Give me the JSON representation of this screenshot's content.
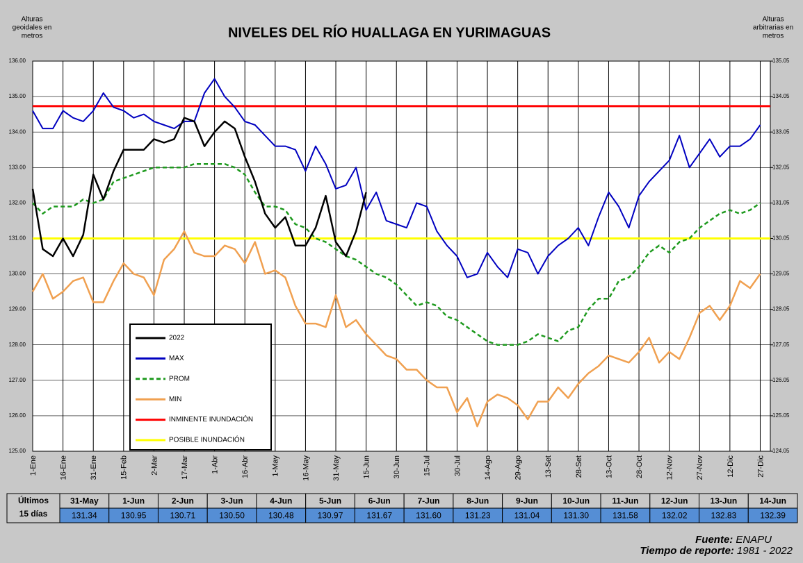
{
  "chart_data": {
    "type": "line",
    "title": "NIVELES DEL RÍO HUALLAGA EN YURIMAGUAS",
    "y_label": [
      "Alturas",
      "geoidales en",
      "metros"
    ],
    "y2_label": [
      "Alturas",
      "arbitrarias en",
      "metros"
    ],
    "x": [
      1,
      6,
      11,
      16,
      21,
      26,
      31,
      36,
      41,
      46,
      51,
      56,
      61,
      66,
      71,
      76,
      81,
      86,
      91,
      96,
      101,
      106,
      111,
      116,
      121,
      126,
      131,
      136,
      141,
      146,
      151,
      156,
      161,
      166,
      171,
      176,
      181,
      186,
      191,
      196,
      201,
      206,
      211,
      216,
      221,
      226,
      231,
      236,
      241,
      246,
      251,
      256,
      261,
      266,
      271,
      276,
      281,
      286,
      291,
      296,
      301,
      306,
      311,
      316,
      321,
      326,
      331,
      336,
      341,
      346,
      351,
      356,
      361
    ],
    "xlim": [
      1,
      366
    ],
    "xticks": [
      {
        "value": 1,
        "label": "1-Ene"
      },
      {
        "value": 16,
        "label": "16-Ene"
      },
      {
        "value": 31,
        "label": "31-Ene"
      },
      {
        "value": 46,
        "label": "15-Feb"
      },
      {
        "value": 61,
        "label": "2-Mar"
      },
      {
        "value": 76,
        "label": "17-Mar"
      },
      {
        "value": 91,
        "label": "1-Abr"
      },
      {
        "value": 106,
        "label": "16-Abr"
      },
      {
        "value": 121,
        "label": "1-May"
      },
      {
        "value": 136,
        "label": "16-May"
      },
      {
        "value": 151,
        "label": "31-May"
      },
      {
        "value": 166,
        "label": "15-Jun"
      },
      {
        "value": 181,
        "label": "30-Jun"
      },
      {
        "value": 196,
        "label": "15-Jul"
      },
      {
        "value": 211,
        "label": "30-Jul"
      },
      {
        "value": 226,
        "label": "14-Ago"
      },
      {
        "value": 241,
        "label": "29-Ago"
      },
      {
        "value": 256,
        "label": "13-Set"
      },
      {
        "value": 271,
        "label": "28-Set"
      },
      {
        "value": 286,
        "label": "13-Oct"
      },
      {
        "value": 301,
        "label": "28-Oct"
      },
      {
        "value": 316,
        "label": "12-Nov"
      },
      {
        "value": 331,
        "label": "27-Nov"
      },
      {
        "value": 346,
        "label": "12-Dic"
      },
      {
        "value": 361,
        "label": "27-Dic"
      }
    ],
    "ylim": [
      125,
      136
    ],
    "yticks": [
      {
        "value": 125,
        "label": "125.00"
      },
      {
        "value": 126,
        "label": "126.00"
      },
      {
        "value": 127,
        "label": "127.00"
      },
      {
        "value": 128,
        "label": "128.00"
      },
      {
        "value": 129,
        "label": "129.00"
      },
      {
        "value": 130,
        "label": "130.00"
      },
      {
        "value": 131,
        "label": "131.00"
      },
      {
        "value": 132,
        "label": "132.00"
      },
      {
        "value": 133,
        "label": "133.00"
      },
      {
        "value": 134,
        "label": "134.00"
      },
      {
        "value": 135,
        "label": "135.00"
      },
      {
        "value": 136,
        "label": "136.00"
      }
    ],
    "y2lim": [
      124.05,
      135.05
    ],
    "y2ticks": [
      124.05,
      125.05,
      126.05,
      127.05,
      128.05,
      129.05,
      130.05,
      131.05,
      132.05,
      133.05,
      134.05,
      135.05
    ],
    "grid": true,
    "series": [
      {
        "name": "2022",
        "color": "#000000",
        "dashed": false,
        "values": [
          132.4,
          130.7,
          130.5,
          131.0,
          130.5,
          131.1,
          132.8,
          132.1,
          132.9,
          133.5,
          133.5,
          133.5,
          133.8,
          133.7,
          133.8,
          134.4,
          134.3,
          133.6,
          134.0,
          134.3,
          134.1,
          133.3,
          132.6,
          131.7,
          131.3,
          131.6,
          130.8,
          130.8,
          131.3,
          132.2,
          130.9,
          130.5,
          131.2,
          132.3,
          null,
          null,
          null,
          null,
          null,
          null,
          null,
          null,
          null,
          null,
          null,
          null,
          null,
          null,
          null,
          null,
          null,
          null,
          null,
          null,
          null,
          null,
          null,
          null,
          null,
          null,
          null,
          null,
          null,
          null,
          null,
          null,
          null,
          null,
          null,
          null,
          null,
          null,
          null
        ]
      },
      {
        "name": "MAX",
        "color": "#0000c0",
        "dashed": false,
        "values": [
          134.6,
          134.1,
          134.1,
          134.6,
          134.4,
          134.3,
          134.6,
          135.1,
          134.7,
          134.6,
          134.4,
          134.5,
          134.3,
          134.2,
          134.1,
          134.3,
          134.3,
          135.1,
          135.5,
          135.0,
          134.7,
          134.3,
          134.2,
          133.9,
          133.6,
          133.6,
          133.5,
          132.9,
          133.6,
          133.1,
          132.4,
          132.5,
          133.0,
          131.8,
          132.3,
          131.5,
          131.4,
          131.3,
          132.0,
          131.9,
          131.2,
          130.8,
          130.5,
          129.9,
          130.0,
          130.6,
          130.2,
          129.9,
          130.7,
          130.6,
          130.0,
          130.5,
          130.8,
          131.0,
          131.3,
          130.8,
          131.6,
          132.3,
          131.9,
          131.3,
          132.2,
          132.6,
          132.9,
          133.2,
          133.9,
          133.0,
          133.4,
          133.8,
          133.3,
          133.6,
          133.6,
          133.8,
          134.2
        ]
      },
      {
        "name": "PROM",
        "color": "#1e9a1e",
        "dashed": true,
        "values": [
          132.0,
          131.7,
          131.9,
          131.9,
          131.9,
          132.1,
          132.0,
          132.1,
          132.6,
          132.7,
          132.8,
          132.9,
          133.0,
          133.0,
          133.0,
          133.0,
          133.1,
          133.1,
          133.1,
          133.1,
          133.0,
          132.8,
          132.3,
          131.9,
          131.9,
          131.8,
          131.4,
          131.3,
          131.0,
          130.9,
          130.7,
          130.5,
          130.4,
          130.2,
          130.0,
          129.9,
          129.7,
          129.4,
          129.1,
          129.2,
          129.1,
          128.8,
          128.7,
          128.5,
          128.3,
          128.1,
          128.0,
          128.0,
          128.0,
          128.1,
          128.3,
          128.2,
          128.1,
          128.4,
          128.5,
          129.0,
          129.3,
          129.3,
          129.8,
          129.9,
          130.2,
          130.6,
          130.8,
          130.6,
          130.9,
          131.0,
          131.3,
          131.5,
          131.7,
          131.8,
          131.7,
          131.8,
          132.0
        ]
      },
      {
        "name": "MIN",
        "color": "#f0a050",
        "dashed": false,
        "values": [
          129.5,
          130.0,
          129.3,
          129.5,
          129.8,
          129.9,
          129.2,
          129.2,
          129.8,
          130.3,
          130.0,
          129.9,
          129.4,
          130.4,
          130.7,
          131.2,
          130.6,
          130.5,
          130.5,
          130.8,
          130.7,
          130.3,
          130.9,
          130.0,
          130.1,
          129.9,
          129.1,
          128.6,
          128.6,
          128.5,
          129.4,
          128.5,
          128.7,
          128.3,
          128.0,
          127.7,
          127.6,
          127.3,
          127.3,
          127.0,
          126.8,
          126.8,
          126.1,
          126.5,
          125.7,
          126.4,
          126.6,
          126.5,
          126.3,
          125.9,
          126.4,
          126.4,
          126.8,
          126.5,
          126.9,
          127.2,
          127.4,
          127.7,
          127.6,
          127.5,
          127.8,
          128.2,
          127.5,
          127.8,
          127.6,
          128.2,
          128.9,
          129.1,
          128.7,
          129.1,
          129.8,
          129.6,
          130.0
        ]
      }
    ],
    "reference_lines": [
      {
        "name": "INMINENTE INUNDACIÓN",
        "color": "#ff0000",
        "value": 134.73
      },
      {
        "name": "POSIBLE INUNDACIÓN",
        "color": "#ffff00",
        "value": 131.0
      }
    ]
  },
  "table": {
    "header": [
      "Últimos",
      "15 días"
    ],
    "dates": [
      "31-May",
      "1-Jun",
      "2-Jun",
      "3-Jun",
      "4-Jun",
      "5-Jun",
      "6-Jun",
      "7-Jun",
      "8-Jun",
      "9-Jun",
      "10-Jun",
      "11-Jun",
      "12-Jun",
      "13-Jun",
      "14-Jun"
    ],
    "values": [
      "131.34",
      "130.95",
      "130.71",
      "130.50",
      "130.48",
      "130.97",
      "131.67",
      "131.60",
      "131.23",
      "131.04",
      "131.30",
      "131.58",
      "132.02",
      "132.83",
      "132.39"
    ]
  },
  "footer": {
    "source_label": "Fuente:",
    "source": "ENAPU",
    "period_label": "Tiempo de reporte:",
    "period": "1981 - 2022"
  }
}
